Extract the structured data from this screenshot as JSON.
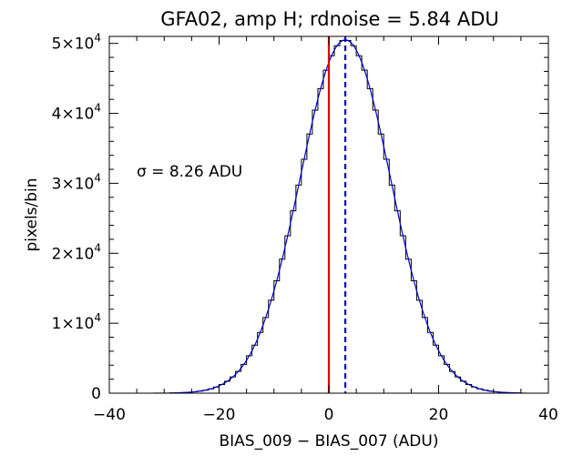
{
  "chart_data": {
    "type": "line",
    "title": "GFA02, amp H; rdnoise = 5.84 ADU",
    "xlabel": "BIAS_009 − BIAS_007 (ADU)",
    "ylabel": "pixels/bin",
    "xlim": [
      -40,
      40
    ],
    "ylim": [
      0,
      51000
    ],
    "x_ticks": [
      -40,
      -20,
      0,
      20,
      40
    ],
    "x_tick_labels": [
      "−40",
      "−20",
      "0",
      "20",
      "40"
    ],
    "y_ticks": [
      0,
      10000,
      20000,
      30000,
      40000,
      50000
    ],
    "y_tick_labels": [
      {
        "mantissa": "0",
        "exp": ""
      },
      {
        "mantissa": "1×10",
        "exp": "4"
      },
      {
        "mantissa": "2×10",
        "exp": "4"
      },
      {
        "mantissa": "3×10",
        "exp": "4"
      },
      {
        "mantissa": "4×10",
        "exp": "4"
      },
      {
        "mantissa": "5×10",
        "exp": "4"
      }
    ],
    "annotation": {
      "symbol": "σ",
      "text": " = 8.26 ADU"
    },
    "fit": {
      "mean": 3,
      "sigma": 8.26,
      "peak": 50500
    },
    "histogram": {
      "bin_width": 1,
      "range": [
        -35,
        36
      ]
    },
    "reference_lines": [
      {
        "x": 0,
        "style": "solid",
        "color": "#dd0000"
      },
      {
        "x": 3,
        "style": "dashed",
        "color": "#0000cc"
      }
    ],
    "colors": {
      "histogram": "#000000",
      "fit": "#0000cc",
      "axes": "#000000"
    },
    "grid": false
  }
}
